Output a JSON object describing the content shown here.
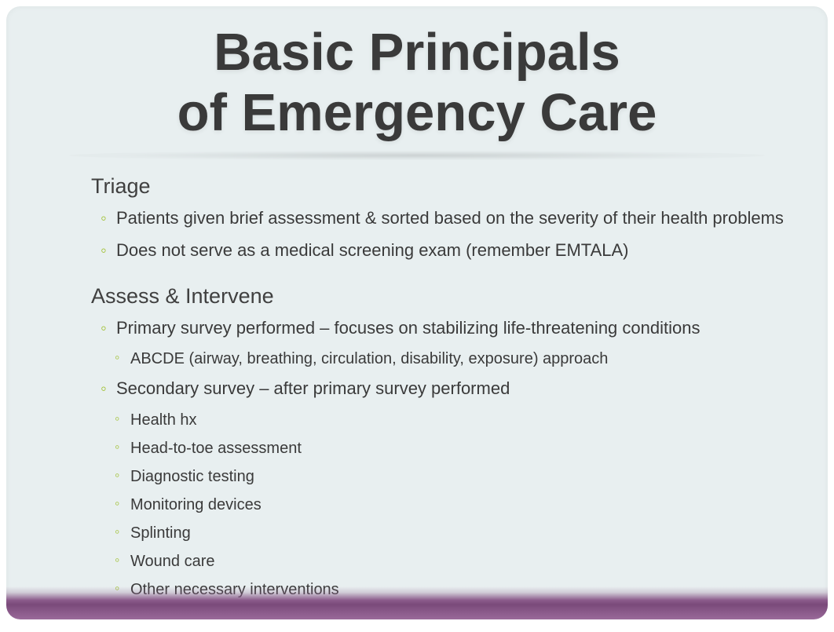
{
  "colors": {
    "background": "#e8eff0",
    "title_text": "#3a3a3a",
    "body_text": "#3a3a3a",
    "bullet_marker": "#a3c239",
    "bottom_bar_start": "#8a5a8a",
    "bottom_bar_end": "#9a6a9a"
  },
  "typography": {
    "title_fontsize": 67,
    "title_weight": 800,
    "section_heading_fontsize": 27,
    "bullet_l1_fontsize": 22,
    "bullet_l2_fontsize": 20,
    "font_family": "Segoe UI"
  },
  "layout": {
    "slide_width": 1046,
    "slide_height": 781,
    "border_radius": 18,
    "bottom_bar_height": 42
  },
  "title": {
    "line1": "Basic Principals",
    "line2": "of Emergency Care"
  },
  "sections": [
    {
      "heading": "Triage",
      "items": [
        {
          "text": "Patients given brief assessment & sorted based on the severity of their health problems",
          "children": []
        },
        {
          "text": "Does not serve as a medical screening exam (remember EMTALA)",
          "children": []
        }
      ]
    },
    {
      "heading": "Assess & Intervene",
      "items": [
        {
          "text": "Primary survey performed – focuses on stabilizing life-threatening conditions",
          "children": [
            {
              "text": "ABCDE (airway, breathing, circulation, disability, exposure) approach"
            }
          ]
        },
        {
          "text": "Secondary survey – after primary survey performed",
          "children": [
            {
              "text": "Health hx"
            },
            {
              "text": "Head-to-toe assessment"
            },
            {
              "text": "Diagnostic testing"
            },
            {
              "text": "Monitoring devices"
            },
            {
              "text": "Splinting"
            },
            {
              "text": "Wound care"
            },
            {
              "text": "Other necessary interventions"
            }
          ]
        }
      ]
    }
  ]
}
